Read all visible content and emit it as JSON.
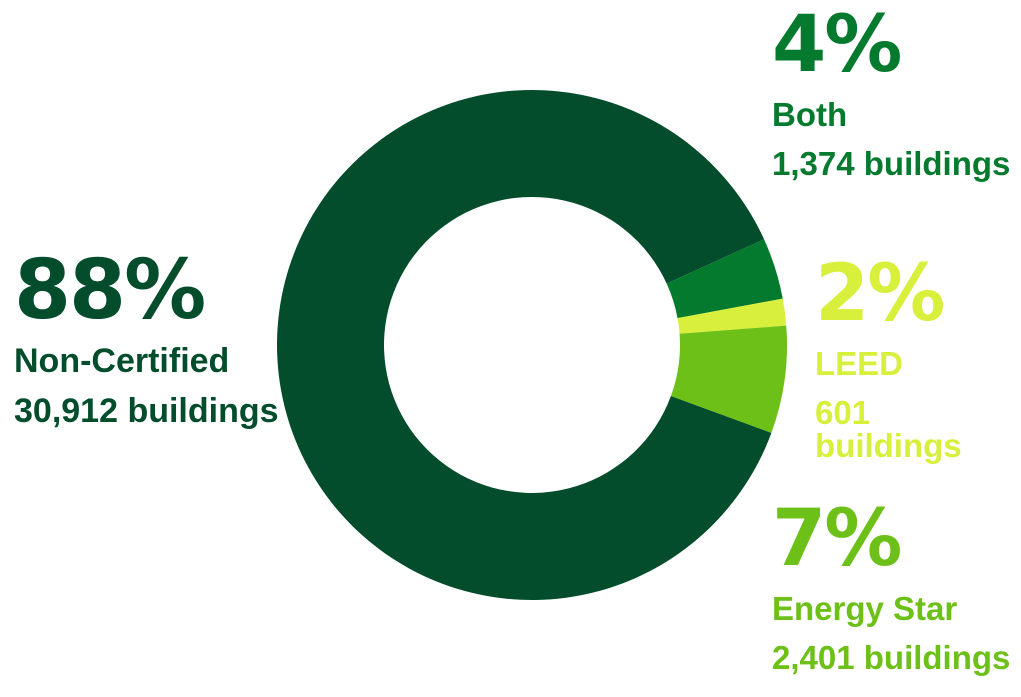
{
  "chart_data": {
    "type": "pie",
    "donut": true,
    "values": [
      88,
      4,
      2,
      7
    ],
    "buildings": [
      30912,
      1374,
      601,
      2401
    ],
    "slices": [
      {
        "name": "Non-Certified",
        "percent_label": "88%",
        "count_label": "30,912 buildings",
        "color": "#034d2c"
      },
      {
        "name": "Both",
        "percent_label": "4%",
        "count_label": "1,374 buildings",
        "color": "#047a2e"
      },
      {
        "name": "LEED",
        "percent_label": "2%",
        "count_label": "601 buildings",
        "color": "#d8f03c"
      },
      {
        "name": "Energy Star",
        "percent_label": "7%",
        "count_label": "2,401 buildings",
        "color": "#6cc018"
      }
    ]
  }
}
